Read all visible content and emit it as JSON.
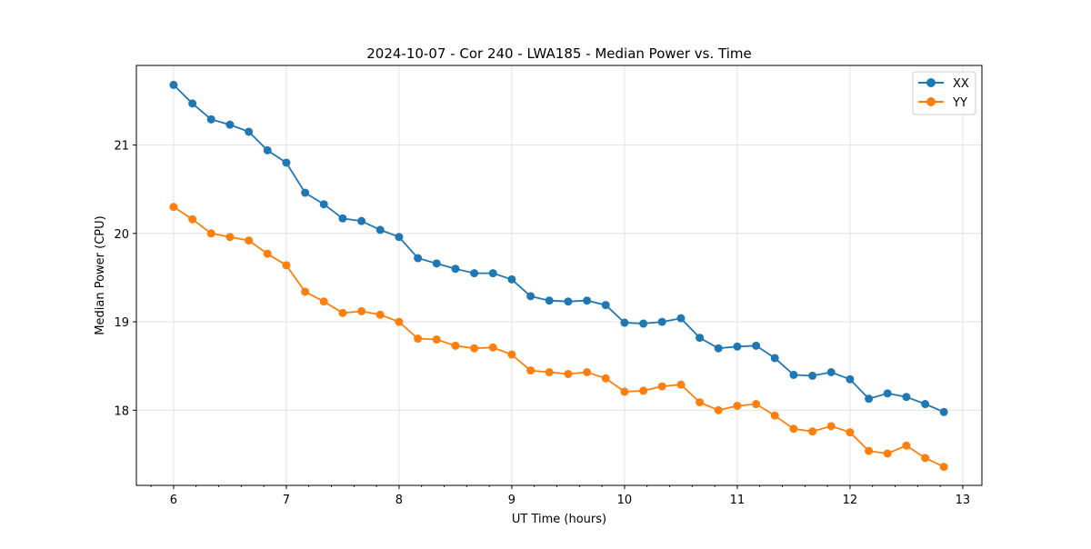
{
  "colors": {
    "xx": "#1f77b4",
    "yy": "#ff7f0e",
    "grid": "#dddddd",
    "axis": "#000000"
  },
  "chart_data": {
    "type": "line",
    "title": "2024-10-07 - Cor 240 - LWA185 - Median Power vs. Time",
    "xlabel": "UT Time (hours)",
    "ylabel": "Median Power (CPU)",
    "xlim": [
      5.67,
      13.17
    ],
    "ylim": [
      17.15,
      21.9
    ],
    "xticks": [
      6,
      7,
      8,
      9,
      10,
      11,
      12,
      13
    ],
    "yticks": [
      18,
      19,
      20,
      21
    ],
    "grid": true,
    "legend_position": "top-right",
    "x": [
      6.0,
      6.167,
      6.333,
      6.5,
      6.667,
      6.833,
      7.0,
      7.167,
      7.333,
      7.5,
      7.667,
      7.833,
      8.0,
      8.167,
      8.333,
      8.5,
      8.667,
      8.833,
      9.0,
      9.167,
      9.333,
      9.5,
      9.667,
      9.833,
      10.0,
      10.167,
      10.333,
      10.5,
      10.667,
      10.833,
      11.0,
      11.167,
      11.333,
      11.5,
      11.667,
      11.833,
      12.0,
      12.167,
      12.333,
      12.5,
      12.667,
      12.833
    ],
    "series": [
      {
        "name": "XX",
        "color_key": "xx",
        "values": [
          21.68,
          21.47,
          21.29,
          21.23,
          21.15,
          20.94,
          20.8,
          20.46,
          20.33,
          20.17,
          20.14,
          20.04,
          19.96,
          19.72,
          19.66,
          19.6,
          19.55,
          19.55,
          19.48,
          19.29,
          19.24,
          19.23,
          19.24,
          19.19,
          18.99,
          18.98,
          19.0,
          19.04,
          18.82,
          18.7,
          18.72,
          18.73,
          18.59,
          18.4,
          18.39,
          18.43,
          18.35,
          18.13,
          18.19,
          18.15,
          18.07,
          17.98
        ]
      },
      {
        "name": "YY",
        "color_key": "yy",
        "values": [
          20.3,
          20.16,
          20.0,
          19.96,
          19.92,
          19.77,
          19.64,
          19.34,
          19.23,
          19.1,
          19.12,
          19.08,
          19.0,
          18.81,
          18.8,
          18.73,
          18.7,
          18.71,
          18.63,
          18.45,
          18.43,
          18.41,
          18.43,
          18.36,
          18.21,
          18.22,
          18.27,
          18.29,
          18.09,
          18.0,
          18.05,
          18.07,
          17.94,
          17.79,
          17.76,
          17.82,
          17.75,
          17.54,
          17.51,
          17.6,
          17.46,
          17.36
        ]
      }
    ]
  }
}
